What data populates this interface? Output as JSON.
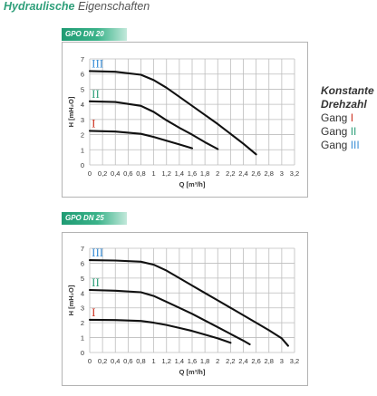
{
  "page": {
    "title_bold": "Hydraulische",
    "title_rest": "Eigenschaften"
  },
  "legend": {
    "line1": "Konstante",
    "line2": "Drehzahl",
    "gang_word": "Gang",
    "items": [
      {
        "label": "I",
        "color": "#cc3322"
      },
      {
        "label": "II",
        "color": "#2f9f7a"
      },
      {
        "label": "III",
        "color": "#3b8fd6"
      }
    ]
  },
  "chart_data": [
    {
      "type": "line",
      "title": "GPO DN 20",
      "xlabel": "Q [m³/h]",
      "ylabel": "H [mH₂O]",
      "xlim": [
        0,
        3.2
      ],
      "ylim": [
        0,
        7
      ],
      "xticks": [
        "0",
        "0,2",
        "0,4",
        "0,6",
        "0,8",
        "1",
        "1,2",
        "1,4",
        "1,6",
        "1,8",
        "2",
        "2,2",
        "2,4",
        "2,6",
        "2,8",
        "3",
        "3,2"
      ],
      "yticks": [
        "0",
        "1",
        "2",
        "3",
        "4",
        "5",
        "6",
        "7"
      ],
      "grid": true,
      "series": [
        {
          "name": "I",
          "color": "#cc3322",
          "x": [
            0,
            0.4,
            0.8,
            1.0,
            1.2,
            1.4,
            1.6
          ],
          "y": [
            2.25,
            2.2,
            2.05,
            1.85,
            1.6,
            1.35,
            1.1
          ]
        },
        {
          "name": "II",
          "color": "#2f9f7a",
          "x": [
            0,
            0.4,
            0.8,
            1.0,
            1.2,
            1.4,
            1.6,
            1.8,
            2.0
          ],
          "y": [
            4.2,
            4.15,
            3.9,
            3.5,
            2.95,
            2.45,
            2.0,
            1.5,
            1.05
          ]
        },
        {
          "name": "III",
          "color": "#3b8fd6",
          "x": [
            0,
            0.4,
            0.8,
            1.0,
            1.2,
            1.4,
            1.6,
            1.8,
            2.0,
            2.2,
            2.4,
            2.6
          ],
          "y": [
            6.2,
            6.15,
            5.95,
            5.6,
            5.1,
            4.5,
            3.9,
            3.3,
            2.7,
            2.05,
            1.4,
            0.7
          ]
        }
      ]
    },
    {
      "type": "line",
      "title": "GPO DN 25",
      "xlabel": "Q [m³/h]",
      "ylabel": "H [mH₂O]",
      "xlim": [
        0,
        3.2
      ],
      "ylim": [
        0,
        7
      ],
      "xticks": [
        "0",
        "0,2",
        "0,4",
        "0,6",
        "0,8",
        "1",
        "1,2",
        "1,4",
        "1,6",
        "1,8",
        "2",
        "2,2",
        "2,4",
        "2,6",
        "2,8",
        "3",
        "3,2"
      ],
      "yticks": [
        "0",
        "1",
        "2",
        "3",
        "4",
        "5",
        "6",
        "7"
      ],
      "grid": true,
      "series": [
        {
          "name": "I",
          "color": "#cc3322",
          "x": [
            0,
            0.4,
            0.8,
            1.0,
            1.2,
            1.4,
            1.6,
            1.8,
            2.0,
            2.2
          ],
          "y": [
            2.2,
            2.18,
            2.12,
            2.0,
            1.85,
            1.65,
            1.45,
            1.2,
            0.95,
            0.65
          ]
        },
        {
          "name": "II",
          "color": "#2f9f7a",
          "x": [
            0,
            0.4,
            0.8,
            1.0,
            1.2,
            1.4,
            1.6,
            1.8,
            2.0,
            2.2,
            2.4,
            2.5
          ],
          "y": [
            4.2,
            4.15,
            4.05,
            3.8,
            3.4,
            3.0,
            2.6,
            2.15,
            1.7,
            1.25,
            0.8,
            0.55
          ]
        },
        {
          "name": "III",
          "color": "#3b8fd6",
          "x": [
            0,
            0.4,
            0.8,
            1.0,
            1.2,
            1.4,
            1.6,
            1.8,
            2.0,
            2.2,
            2.4,
            2.6,
            2.8,
            3.0,
            3.1
          ],
          "y": [
            6.2,
            6.18,
            6.1,
            5.9,
            5.5,
            5.0,
            4.5,
            4.0,
            3.5,
            3.0,
            2.5,
            2.0,
            1.5,
            0.95,
            0.45
          ]
        }
      ]
    }
  ]
}
